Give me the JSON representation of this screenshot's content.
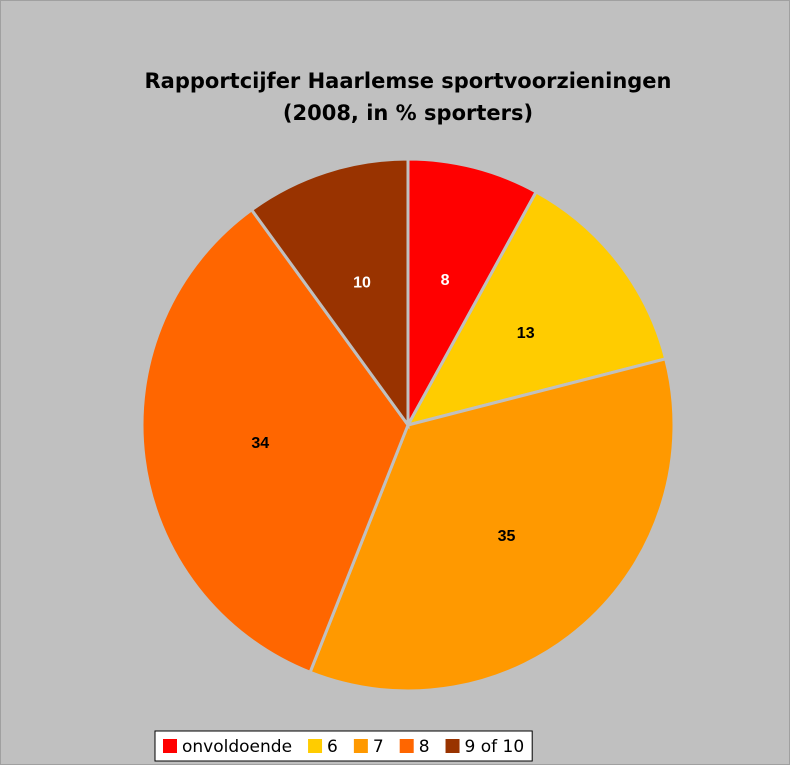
{
  "chart_data": {
    "type": "pie",
    "title": "Rapportcijfer Haarlemse sportvoorzieningen",
    "subtitle": "(2008, in % sporters)",
    "categories": [
      "onvoldoende",
      "6",
      "7",
      "8",
      "9 of 10"
    ],
    "values": [
      8,
      13,
      35,
      34,
      10
    ],
    "colors": [
      "#ff0000",
      "#ffcc00",
      "#ff9900",
      "#ff6600",
      "#993300"
    ],
    "label_colors": [
      "#ffffff",
      "#000000",
      "#000000",
      "#000000",
      "#ffffff"
    ],
    "legend": "bottom"
  }
}
